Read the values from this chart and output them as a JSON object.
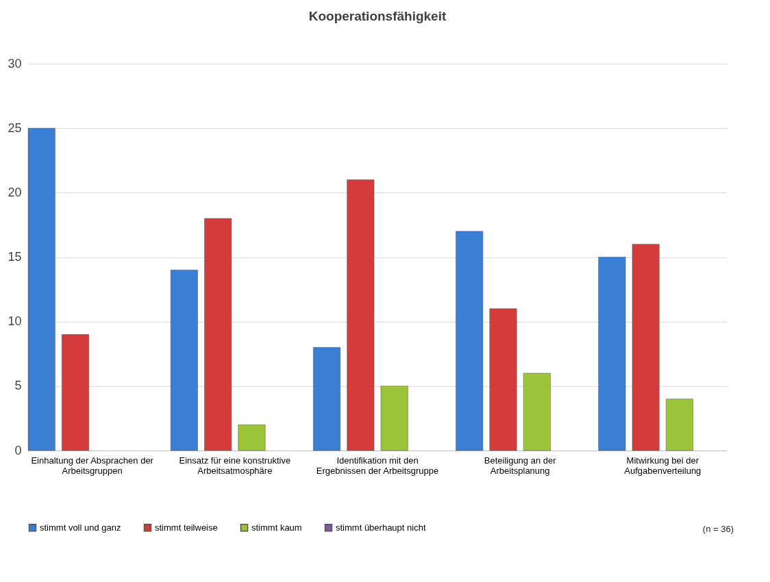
{
  "chart_data": {
    "type": "bar",
    "title": "Kooperationsfähigkeit",
    "categories": [
      "Einhaltung der Absprachen der Arbeitsgruppen",
      "Einsatz für eine konstruktive Arbeitsatmosphäre",
      "Identifikation mit den Ergebnissen der Arbeitsgruppe",
      "Beteiligung an der Arbeitsplanung",
      "Mitwirkung bei der Aufgabenverteilung"
    ],
    "series": [
      {
        "name": "stimmt voll und ganz",
        "color": "#3a7fd5",
        "values": [
          25,
          14,
          8,
          17,
          15
        ]
      },
      {
        "name": "stimmt teilweise",
        "color": "#d63b3b",
        "values": [
          9,
          18,
          21,
          11,
          16
        ]
      },
      {
        "name": "stimmt kaum",
        "color": "#9bc43a",
        "values": [
          null,
          2,
          5,
          6,
          4
        ]
      },
      {
        "name": "stimmt überhaupt nicht",
        "color": "#7e57a8",
        "values": [
          null,
          null,
          null,
          null,
          null
        ]
      }
    ],
    "ylim": [
      0,
      30
    ],
    "yticks": [
      0,
      5,
      10,
      15,
      20,
      25,
      30
    ],
    "grid": "y",
    "legend": "bottom",
    "annotations": [
      "(n = 36)"
    ]
  }
}
